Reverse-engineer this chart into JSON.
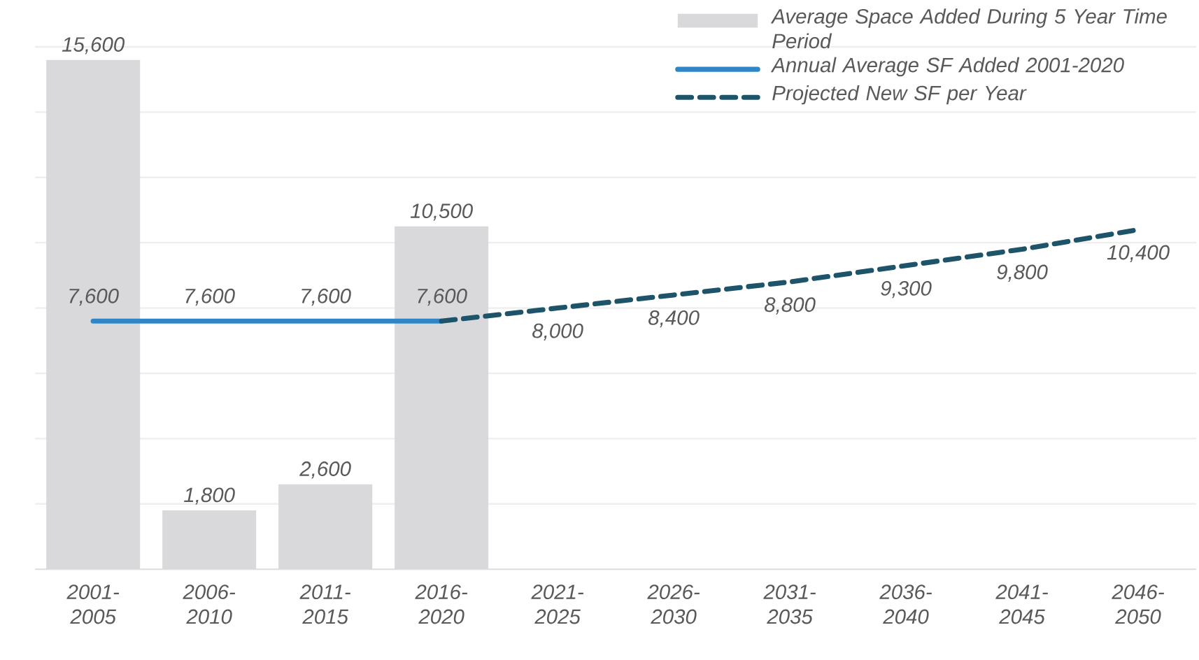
{
  "chart_data": {
    "type": "bar",
    "categories": [
      "2001-2005",
      "2006-2010",
      "2011-2015",
      "2016-2020",
      "2021-2025",
      "2026-2030",
      "2031-2035",
      "2036-2040",
      "2041-2045",
      "2046-2050"
    ],
    "series": [
      {
        "name": "Average Space Added During 5 Year Time Period",
        "type": "bar",
        "color": "#d9d9db",
        "values": [
          15600,
          1800,
          2600,
          10500,
          null,
          null,
          null,
          null,
          null,
          null
        ],
        "value_labels": [
          "15,600",
          "1,800",
          "2,600",
          "10,500",
          null,
          null,
          null,
          null,
          null,
          null
        ]
      },
      {
        "name": "Annual Average SF Added 2001-2020",
        "type": "line",
        "color": "#2e86c8",
        "line_style": "solid",
        "values": [
          7600,
          7600,
          7600,
          7600,
          null,
          null,
          null,
          null,
          null,
          null
        ],
        "value_labels": [
          "7,600",
          "7,600",
          "7,600",
          "7,600",
          null,
          null,
          null,
          null,
          null,
          null
        ]
      },
      {
        "name": "Projected New SF per Year",
        "type": "line",
        "color": "#1e5469",
        "line_style": "dashed",
        "values": [
          null,
          null,
          null,
          7600,
          8000,
          8400,
          8800,
          9300,
          9800,
          10400
        ],
        "value_labels": [
          null,
          null,
          null,
          null,
          "8,000",
          "8,400",
          "8,800",
          "9,300",
          "9,800",
          "10,400"
        ]
      }
    ],
    "ylim": [
      0,
      16000
    ],
    "yticks": [
      0,
      2000,
      4000,
      6000,
      8000,
      10000,
      12000,
      14000,
      16000
    ],
    "grid": "y",
    "legend": "top right",
    "tick_labels": "x"
  }
}
